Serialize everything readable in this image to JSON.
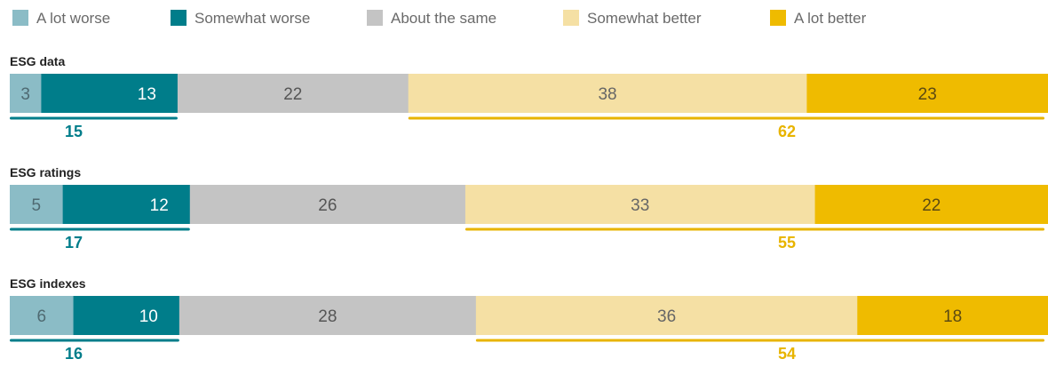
{
  "chart_data": {
    "type": "bar",
    "orientation": "horizontal",
    "stacked": true,
    "categories": [
      "ESG data",
      "ESG ratings",
      "ESG indexes"
    ],
    "series": [
      {
        "name": "A lot worse",
        "color": "#8bbcc6",
        "label_color": "#4f6a72",
        "values": [
          3,
          5,
          6
        ]
      },
      {
        "name": "Somewhat worse",
        "color": "#007d8a",
        "label_color": "#ffffff",
        "values": [
          13,
          12,
          10
        ]
      },
      {
        "name": "About the same",
        "color": "#c4c4c4",
        "label_color": "#555555",
        "values": [
          22,
          26,
          28
        ]
      },
      {
        "name": "Somewhat better",
        "color": "#f5e0a4",
        "label_color": "#666666",
        "values": [
          38,
          33,
          36
        ]
      },
      {
        "name": "A lot better",
        "color": "#efbb00",
        "label_color": "#5c4a12",
        "values": [
          23,
          22,
          18
        ]
      }
    ],
    "totals": {
      "worse": {
        "label": [
          "15",
          "17",
          "16"
        ],
        "color": "#007d8a"
      },
      "better": {
        "label": [
          "62",
          "55",
          "54"
        ],
        "color": "#e8b400"
      }
    },
    "xlim": [
      0,
      100
    ],
    "legend_position": "top",
    "grid": false
  }
}
